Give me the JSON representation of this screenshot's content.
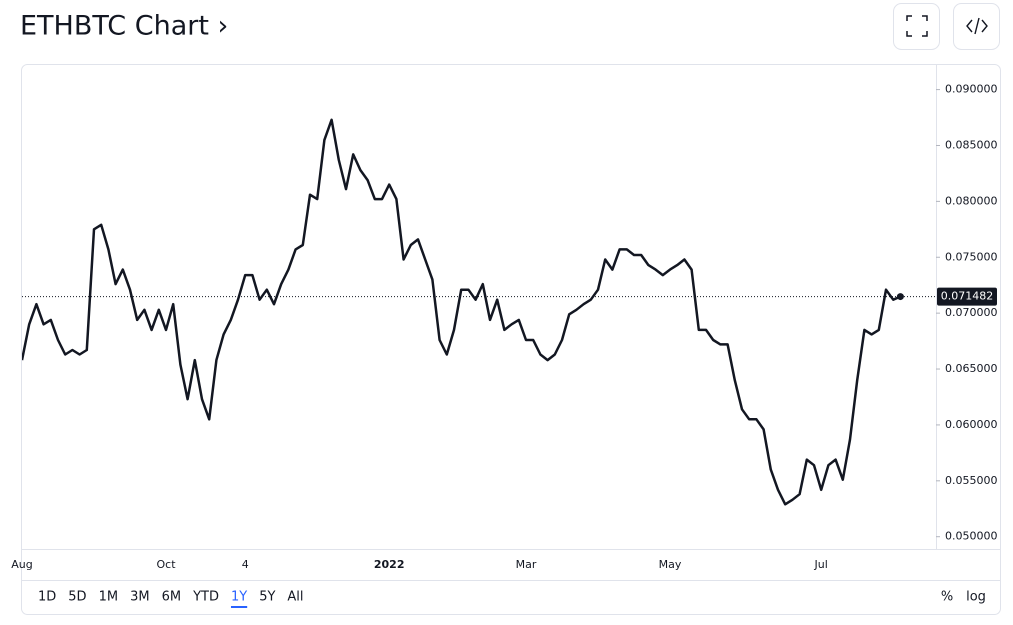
{
  "chart_data": {
    "type": "line",
    "title": "ETHBTC Chart ›",
    "color": "#131722",
    "categories": [
      "Aug",
      null,
      null,
      null,
      null,
      null,
      null,
      null,
      null,
      null,
      null,
      null,
      null,
      null,
      null,
      null,
      null,
      null,
      null,
      null,
      "Oct",
      null,
      null,
      null,
      null,
      null,
      null,
      null,
      null,
      null,
      null,
      "4",
      null,
      null,
      null,
      null,
      null,
      null,
      null,
      null,
      null,
      null,
      null,
      null,
      null,
      null,
      null,
      null,
      null,
      null,
      null,
      "2022",
      null,
      null,
      null,
      null,
      null,
      null,
      null,
      null,
      null,
      null,
      null,
      null,
      null,
      null,
      null,
      null,
      null,
      null,
      "Mar",
      null,
      null,
      null,
      null,
      null,
      null,
      null,
      null,
      null,
      null,
      null,
      null,
      null,
      null,
      null,
      null,
      null,
      null,
      null,
      "May",
      null,
      null,
      null,
      null,
      null,
      null,
      null,
      null,
      null,
      null,
      null,
      null,
      null,
      null,
      null,
      null,
      null,
      null,
      null,
      null,
      "Jul",
      null,
      null,
      null,
      null,
      null,
      null,
      null,
      null,
      null,
      null,
      null
    ],
    "values": [
      0.0658,
      0.069,
      0.0708,
      0.069,
      0.0694,
      0.0676,
      0.0663,
      0.0667,
      0.0663,
      0.0667,
      0.0775,
      0.0779,
      0.0757,
      0.0726,
      0.0739,
      0.0721,
      0.0694,
      0.0703,
      0.0685,
      0.0703,
      0.0685,
      0.0708,
      0.0654,
      0.0623,
      0.0658,
      0.0623,
      0.0605,
      0.0658,
      0.0681,
      0.0694,
      0.0712,
      0.0734,
      0.0734,
      0.0712,
      0.0721,
      0.0708,
      0.0726,
      0.0739,
      0.0757,
      0.0761,
      0.0806,
      0.0802,
      0.0855,
      0.0873,
      0.0837,
      0.0811,
      0.0842,
      0.0828,
      0.0819,
      0.0802,
      0.0802,
      0.0815,
      0.0802,
      0.0748,
      0.0761,
      0.0766,
      0.0748,
      0.073,
      0.0676,
      0.0663,
      0.0685,
      0.0721,
      0.0721,
      0.0712,
      0.0726,
      0.0694,
      0.0712,
      0.0685,
      0.069,
      0.0694,
      0.0676,
      0.0676,
      0.0663,
      0.0658,
      0.0663,
      0.0676,
      0.0699,
      0.0703,
      0.0708,
      0.0712,
      0.0721,
      0.0748,
      0.0739,
      0.0757,
      0.0757,
      0.0752,
      0.0752,
      0.0743,
      0.0739,
      0.0734,
      0.0739,
      0.0743,
      0.0748,
      0.0739,
      0.0685,
      0.0685,
      0.0676,
      0.0672,
      0.0672,
      0.064,
      0.0614,
      0.0605,
      0.0605,
      0.0596,
      0.056,
      0.0542,
      0.0529,
      0.0533,
      0.0538,
      0.0569,
      0.0564,
      0.0542,
      0.0564,
      0.0569,
      0.0551,
      0.0587,
      0.064,
      0.0685,
      0.0681,
      0.0685,
      0.0721,
      0.0712,
      0.071482
    ],
    "ylim": [
      0.0489,
      0.0922
    ],
    "yticks": [
      {
        "value": 0.05,
        "label": "0.050000"
      },
      {
        "value": 0.055,
        "label": "0.055000"
      },
      {
        "value": 0.06,
        "label": "0.060000"
      },
      {
        "value": 0.065,
        "label": "0.065000"
      },
      {
        "value": 0.07,
        "label": "0.070000"
      },
      {
        "value": 0.075,
        "label": "0.075000"
      },
      {
        "value": 0.08,
        "label": "0.080000"
      },
      {
        "value": 0.085,
        "label": "0.085000"
      },
      {
        "value": 0.09,
        "label": "0.090000"
      }
    ],
    "ranges": [
      "1D",
      "5D",
      "1M",
      "3M",
      "6M",
      "YTD",
      "1Y",
      "5Y",
      "All"
    ],
    "selected_range": "1Y",
    "scale_options": [
      "%",
      "log"
    ]
  }
}
